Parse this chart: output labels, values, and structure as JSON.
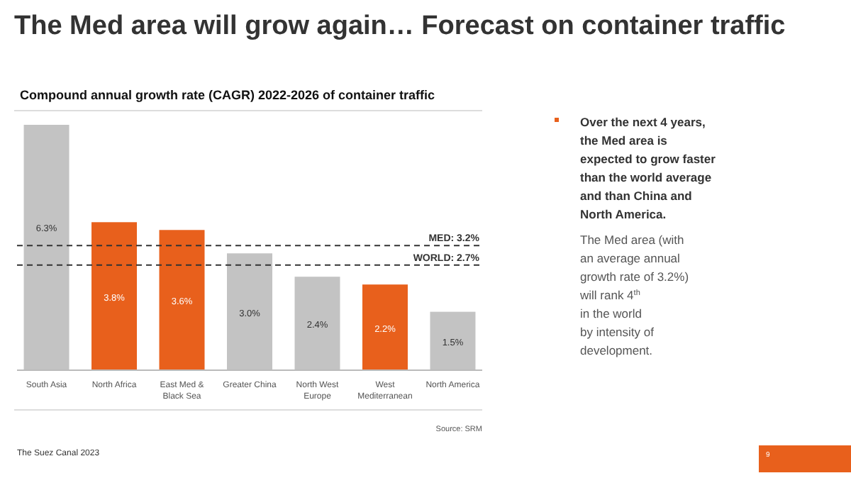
{
  "chart_data": {
    "type": "bar",
    "title": "The Med area will grow again… Forecast on container traffic",
    "subtitle": "Compound annual growth rate (CAGR) 2022-2026 of container traffic",
    "categories": [
      "South Asia",
      "North Africa",
      "East Med & Black Sea",
      "Greater China",
      "North West Europe",
      "West Mediterranean",
      "North America"
    ],
    "values": [
      6.3,
      3.8,
      3.6,
      3.0,
      2.4,
      2.2,
      1.5
    ],
    "colors": [
      "#c3c3c3",
      "#e8601c",
      "#e8601c",
      "#c3c3c3",
      "#c3c3c3",
      "#e8601c",
      "#c3c3c3"
    ],
    "value_labels": [
      "6.3%",
      "3.8%",
      "3.6%",
      "3.0%",
      "2.4%",
      "2.2%",
      "1.5%"
    ],
    "ref_lines": [
      {
        "axis": "y",
        "value": 3.2,
        "label": "MED: 3.2%",
        "line_style": "dashed",
        "color": "#333333"
      },
      {
        "axis": "y",
        "value": 2.7,
        "label": "WORLD: 2.7%",
        "line_style": "dashed",
        "color": "#333333"
      }
    ],
    "annotations": [
      "Over the next 4 years,\nthe Med area is\nexpected to grow faster\nthan the world average\nand than China and\nNorth America.",
      "The Med area (with\nan average annual\ngrowth rate of 3.2%)\nwill rank 4$^{th}$\nin the world\nby intensity of\ndevelopment.",
      "Source: SRM",
      "The Suez Canal 2023",
      "9"
    ]
  }
}
